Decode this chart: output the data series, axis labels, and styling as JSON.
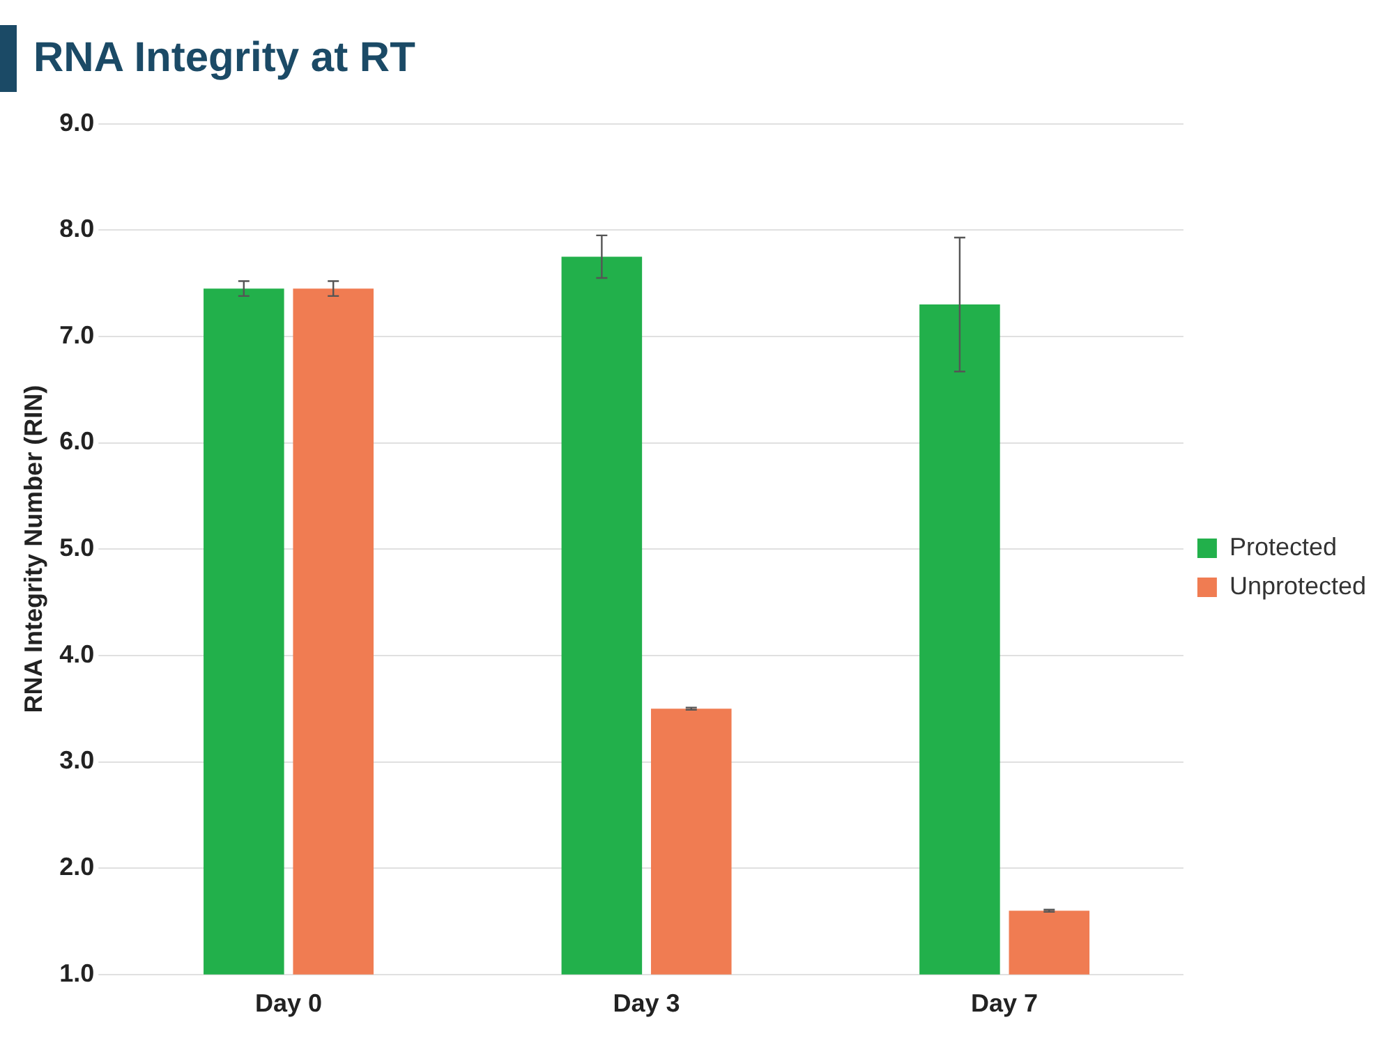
{
  "chart_data": {
    "type": "bar",
    "title": "RNA Integrity at RT",
    "ylabel": "RNA Integrity Number (RIN)",
    "categories": [
      "Day 0",
      "Day 3",
      "Day 7"
    ],
    "series": [
      {
        "name": "Protected",
        "color": "#22b04b",
        "values": [
          7.45,
          7.75,
          7.3
        ],
        "errors": [
          0.07,
          0.2,
          0.63
        ]
      },
      {
        "name": "Unprotected",
        "color": "#f07c52",
        "values": [
          7.45,
          3.5,
          1.6
        ],
        "errors": [
          0.07,
          0.01,
          0.01
        ]
      }
    ],
    "ylim": [
      1,
      9
    ],
    "yticks": [
      {
        "value": 1,
        "label": "1.0"
      },
      {
        "value": 2,
        "label": "2.0"
      },
      {
        "value": 3,
        "label": "3.0"
      },
      {
        "value": 4,
        "label": "4.0"
      },
      {
        "value": 5,
        "label": "5.0"
      },
      {
        "value": 6,
        "label": "6.0"
      },
      {
        "value": 7,
        "label": "7.0"
      },
      {
        "value": 8,
        "label": "8.0"
      },
      {
        "value": 9,
        "label": "9.0"
      }
    ],
    "grid": "y",
    "legend": "right"
  }
}
